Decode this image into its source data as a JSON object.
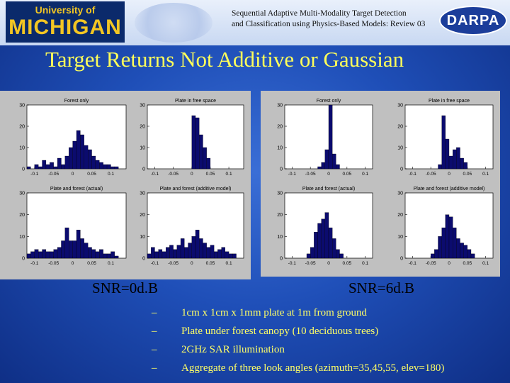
{
  "header": {
    "university_small": "University of",
    "university_big": "MICHIGAN",
    "project_line1": "Sequential Adaptive Multi-Modality Target Detection",
    "project_line2": "and Classification using Physics-Based Models: Review 03",
    "darpa": "DARPA"
  },
  "slide": {
    "title": "Target Returns Not Additive or Gaussian",
    "snr_left": "SNR=0d.B",
    "snr_right": "SNR=6d.B",
    "bullets": [
      "1cm x 1cm x 1mm plate at 1m from ground",
      "Plate under forest canopy (10 deciduous trees)",
      "2GHz SAR illumination",
      "Aggregate of three look angles (azimuth=35,45,55, elev=180)"
    ],
    "bullet_marker": "–"
  },
  "chart_data": [
    {
      "type": "bar",
      "title": "Forest only",
      "xlim": [
        -0.12,
        0.14
      ],
      "xticks": [
        "-0.1",
        "-0.05",
        "0",
        "0.05",
        "0.1"
      ],
      "ylim": [
        0,
        30
      ],
      "yticks": [
        "0",
        "10",
        "20",
        "30"
      ],
      "x": [
        -0.115,
        -0.105,
        -0.095,
        -0.085,
        -0.075,
        -0.065,
        -0.055,
        -0.045,
        -0.035,
        -0.025,
        -0.015,
        -0.005,
        0.005,
        0.015,
        0.025,
        0.035,
        0.045,
        0.055,
        0.065,
        0.075,
        0.085,
        0.095,
        0.105,
        0.115
      ],
      "values": [
        1,
        0,
        2,
        1,
        4,
        2,
        3,
        1,
        5,
        2,
        6,
        10,
        13,
        18,
        16,
        11,
        9,
        6,
        4,
        3,
        2,
        2,
        1,
        1
      ]
    },
    {
      "type": "bar",
      "title": "Plate in free space",
      "xlim": [
        -0.12,
        0.14
      ],
      "xticks": [
        "-0.1",
        "-0.05",
        "0",
        "0.05",
        "0.1"
      ],
      "ylim": [
        0,
        30
      ],
      "yticks": [
        "0",
        "10",
        "20",
        "30"
      ],
      "x": [
        0.005,
        0.015,
        0.025,
        0.035,
        0.045
      ],
      "values": [
        25,
        24,
        16,
        10,
        5
      ]
    },
    {
      "type": "bar",
      "title": "Plate and forest (actual)",
      "xlim": [
        -0.12,
        0.14
      ],
      "xticks": [
        "-0.1",
        "-0.05",
        "0",
        "0.05",
        "0.1"
      ],
      "ylim": [
        0,
        30
      ],
      "yticks": [
        "0",
        "10",
        "20",
        "30"
      ],
      "x": [
        -0.115,
        -0.105,
        -0.095,
        -0.085,
        -0.075,
        -0.065,
        -0.055,
        -0.045,
        -0.035,
        -0.025,
        -0.015,
        -0.005,
        0.005,
        0.015,
        0.025,
        0.035,
        0.045,
        0.055,
        0.065,
        0.075,
        0.085,
        0.095,
        0.105,
        0.115
      ],
      "values": [
        2,
        3,
        4,
        3,
        4,
        3,
        3,
        4,
        5,
        8,
        14,
        8,
        8,
        13,
        9,
        7,
        5,
        4,
        3,
        4,
        2,
        2,
        3,
        1
      ]
    },
    {
      "type": "bar",
      "title": "Plate and forest (additive model)",
      "xlim": [
        -0.12,
        0.14
      ],
      "xticks": [
        "-0.1",
        "-0.05",
        "0",
        "0.05",
        "0.1"
      ],
      "ylim": [
        0,
        30
      ],
      "yticks": [
        "0",
        "10",
        "20",
        "30"
      ],
      "x": [
        -0.115,
        -0.105,
        -0.095,
        -0.085,
        -0.075,
        -0.065,
        -0.055,
        -0.045,
        -0.035,
        -0.025,
        -0.015,
        -0.005,
        0.005,
        0.015,
        0.025,
        0.035,
        0.045,
        0.055,
        0.065,
        0.075,
        0.085,
        0.095,
        0.105,
        0.115
      ],
      "values": [
        2,
        5,
        3,
        4,
        3,
        5,
        6,
        4,
        6,
        9,
        5,
        7,
        10,
        13,
        9,
        7,
        5,
        6,
        3,
        4,
        5,
        3,
        2,
        2
      ]
    },
    {
      "type": "bar",
      "title": "Forest only",
      "xlim": [
        -0.12,
        0.12
      ],
      "xticks": [
        "-0.1",
        "-0.05",
        "0",
        "0.05",
        "0.1"
      ],
      "ylim": [
        0,
        30
      ],
      "yticks": [
        "0",
        "10",
        "20",
        "30"
      ],
      "x": [
        -0.025,
        -0.015,
        -0.005,
        0.005,
        0.015,
        0.025
      ],
      "values": [
        1,
        3,
        9,
        30,
        7,
        2
      ]
    },
    {
      "type": "bar",
      "title": "Plate in free space",
      "xlim": [
        -0.12,
        0.12
      ],
      "xticks": [
        "-0.1",
        "-0.05",
        "0",
        "0.05",
        "0.1"
      ],
      "ylim": [
        0,
        30
      ],
      "yticks": [
        "0",
        "10",
        "20",
        "30"
      ],
      "x": [
        -0.025,
        -0.015,
        -0.005,
        0.005,
        0.015,
        0.025,
        0.035,
        0.045
      ],
      "values": [
        2,
        25,
        14,
        6,
        9,
        10,
        5,
        3
      ]
    },
    {
      "type": "bar",
      "title": "Plate and forest (actual)",
      "xlim": [
        -0.12,
        0.12
      ],
      "xticks": [
        "-0.1",
        "-0.05",
        "0",
        "0.05",
        "0.1"
      ],
      "ylim": [
        0,
        30
      ],
      "yticks": [
        "0",
        "10",
        "20",
        "30"
      ],
      "x": [
        -0.055,
        -0.045,
        -0.035,
        -0.025,
        -0.015,
        -0.005,
        0.005,
        0.015,
        0.025,
        0.035
      ],
      "values": [
        2,
        5,
        12,
        16,
        18,
        21,
        14,
        9,
        4,
        2
      ]
    },
    {
      "type": "bar",
      "title": "Plate and forest (additive model)",
      "xlim": [
        -0.12,
        0.12
      ],
      "xticks": [
        "-0.1",
        "-0.05",
        "0",
        "0.05",
        "0.1"
      ],
      "ylim": [
        0,
        30
      ],
      "yticks": [
        "0",
        "10",
        "20",
        "30"
      ],
      "x": [
        -0.045,
        -0.035,
        -0.025,
        -0.015,
        -0.005,
        0.005,
        0.015,
        0.025,
        0.035,
        0.045,
        0.055,
        0.065
      ],
      "values": [
        2,
        4,
        10,
        14,
        20,
        19,
        14,
        9,
        7,
        6,
        4,
        2
      ]
    }
  ]
}
